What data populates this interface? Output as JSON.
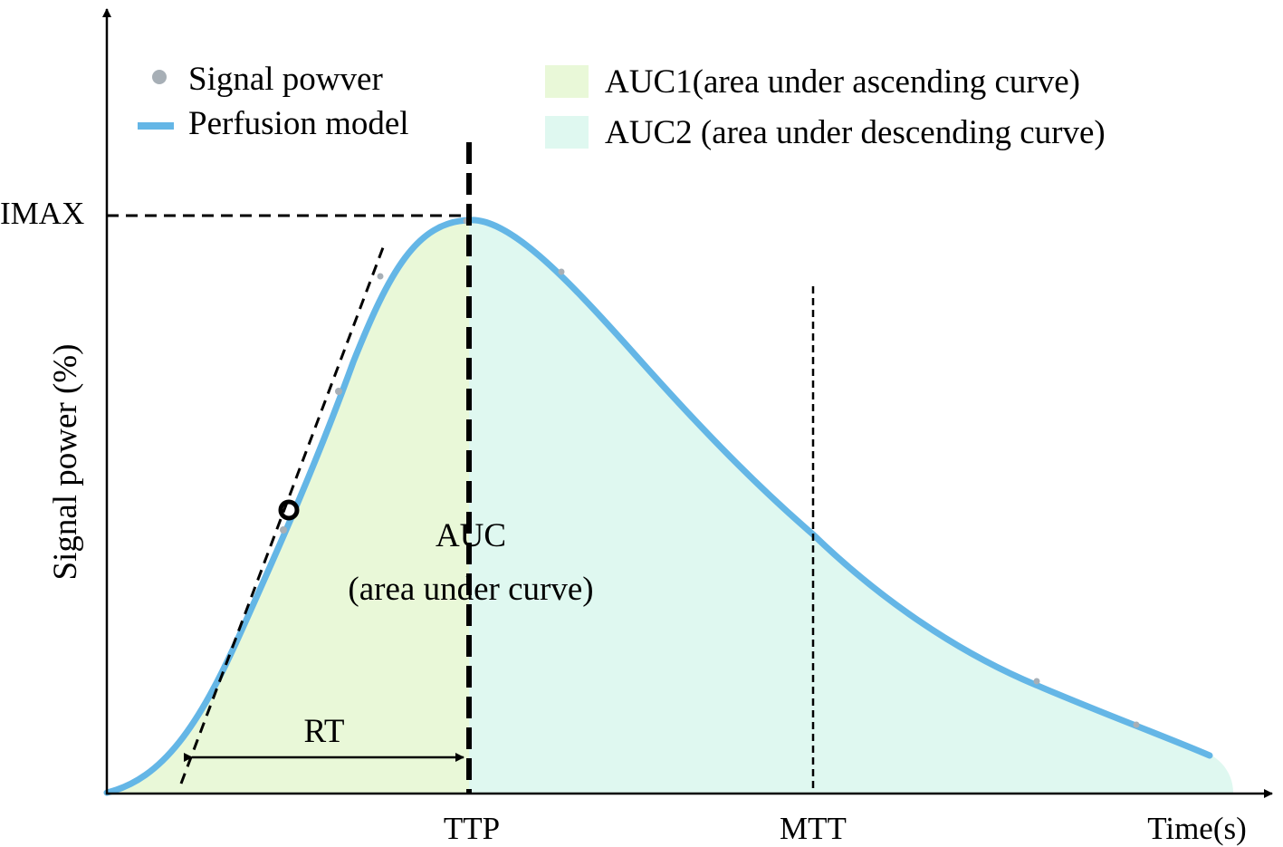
{
  "colors": {
    "auc1_fill": "#e9f8d8",
    "auc2_fill": "#dff8f0",
    "model_curve": "#64b6e6",
    "signal_points": "#a7afb6",
    "axis": "#000000",
    "auc_text": "#e00000"
  },
  "legend": {
    "signal": "Signal powver",
    "model": "Perfusion model",
    "auc1": "AUC1(area under ascending curve)",
    "auc2": "AUC2 (area under descending curve)"
  },
  "axes": {
    "ylabel": "Signal power (%)",
    "xlabel": "Time(s)",
    "imax": "IMAX",
    "ttp": "TTP",
    "mtt": "MTT"
  },
  "annotations": {
    "rt": "RT",
    "auc_line1": "AUC",
    "auc_line2": "(area under curve)"
  }
}
